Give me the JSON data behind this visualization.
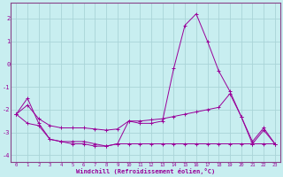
{
  "xlabel": "Windchill (Refroidissement éolien,°C)",
  "background_color": "#c8eef0",
  "grid_color": "#aad4d8",
  "line_color": "#990099",
  "spine_color": "#884488",
  "xlim": [
    -0.5,
    23.5
  ],
  "ylim": [
    -4.3,
    2.7
  ],
  "yticks": [
    -4,
    -3,
    -2,
    -1,
    0,
    1,
    2
  ],
  "xticks": [
    0,
    1,
    2,
    3,
    4,
    5,
    6,
    7,
    8,
    9,
    10,
    11,
    12,
    13,
    14,
    15,
    16,
    17,
    18,
    19,
    20,
    21,
    22,
    23
  ],
  "series": [
    {
      "x": [
        0,
        1,
        2,
        3,
        4,
        5,
        6,
        7,
        8,
        9,
        10,
        11,
        12,
        13,
        14,
        15,
        16,
        17,
        18,
        19,
        20,
        21,
        22,
        23
      ],
      "y": [
        -2.2,
        -1.5,
        -2.6,
        -3.3,
        -3.4,
        -3.5,
        -3.5,
        -3.6,
        -3.6,
        -3.5,
        -2.5,
        -2.6,
        -2.6,
        -2.5,
        -0.2,
        1.7,
        2.2,
        1.0,
        -0.3,
        -1.2,
        -2.3,
        -3.4,
        -2.8,
        -3.5
      ]
    },
    {
      "x": [
        0,
        1,
        2,
        3,
        4,
        5,
        6,
        7,
        8,
        9,
        10,
        11,
        12,
        13,
        14,
        15,
        16,
        17,
        18,
        19,
        20,
        21,
        22,
        23
      ],
      "y": [
        -2.2,
        -1.8,
        -2.4,
        -2.7,
        -2.8,
        -2.8,
        -2.8,
        -2.85,
        -2.9,
        -2.85,
        -2.5,
        -2.5,
        -2.45,
        -2.4,
        -2.3,
        -2.2,
        -2.1,
        -2.0,
        -1.9,
        -1.3,
        -2.3,
        -3.5,
        -2.9,
        -3.5
      ]
    },
    {
      "x": [
        0,
        1,
        2,
        3,
        4,
        5,
        6,
        7,
        8,
        9,
        10,
        11,
        12,
        13,
        14,
        15,
        16,
        17,
        18,
        19,
        20,
        21,
        22,
        23
      ],
      "y": [
        -2.2,
        -2.6,
        -2.7,
        -3.3,
        -3.4,
        -3.4,
        -3.4,
        -3.5,
        -3.6,
        -3.5,
        -3.5,
        -3.5,
        -3.5,
        -3.5,
        -3.5,
        -3.5,
        -3.5,
        -3.5,
        -3.5,
        -3.5,
        -3.5,
        -3.5,
        -3.5,
        -3.5
      ]
    }
  ]
}
